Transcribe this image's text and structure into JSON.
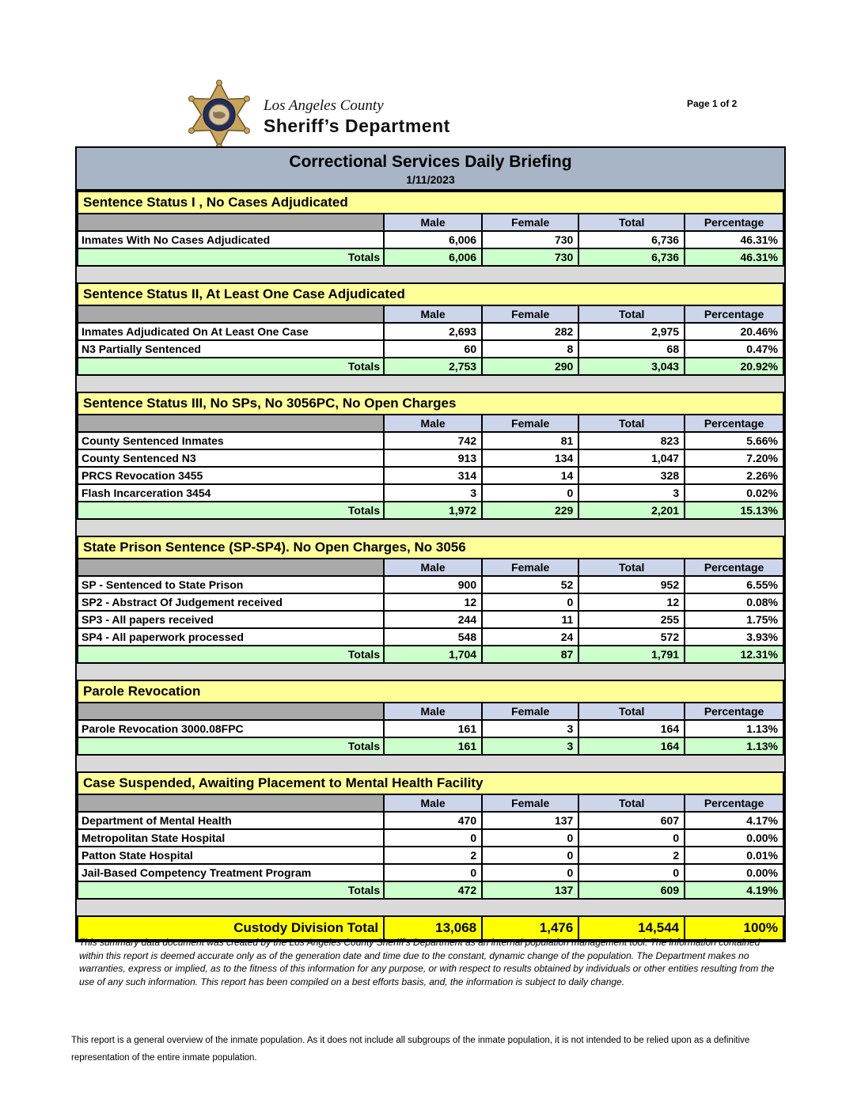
{
  "header": {
    "logo_line1": "Los Angeles County",
    "logo_line2": "Sheriff’s Department",
    "page_indicator": "Page 1 of 2"
  },
  "title_bar": {
    "title": "Correctional Services Daily Briefing",
    "date": "1/11/2023"
  },
  "columns": [
    "Male",
    "Female",
    "Total",
    "Percentage"
  ],
  "totals_label": "Totals",
  "sections": [
    {
      "title": "Sentence Status I , No Cases Adjudicated",
      "rows": [
        {
          "label": "Inmates With No Cases Adjudicated",
          "male": "6,006",
          "female": "730",
          "total": "6,736",
          "pct": "46.31%"
        }
      ],
      "totals": {
        "male": "6,006",
        "female": "730",
        "total": "6,736",
        "pct": "46.31%"
      }
    },
    {
      "title": "Sentence Status II, At Least One Case Adjudicated",
      "rows": [
        {
          "label": "Inmates Adjudicated On At Least One Case",
          "male": "2,693",
          "female": "282",
          "total": "2,975",
          "pct": "20.46%"
        },
        {
          "label": "N3 Partially Sentenced",
          "male": "60",
          "female": "8",
          "total": "68",
          "pct": "0.47%"
        }
      ],
      "totals": {
        "male": "2,753",
        "female": "290",
        "total": "3,043",
        "pct": "20.92%"
      }
    },
    {
      "title": "Sentence Status III, No SPs, No 3056PC, No Open Charges",
      "rows": [
        {
          "label": "County Sentenced Inmates",
          "male": "742",
          "female": "81",
          "total": "823",
          "pct": "5.66%"
        },
        {
          "label": "County Sentenced N3",
          "male": "913",
          "female": "134",
          "total": "1,047",
          "pct": "7.20%"
        },
        {
          "label": "PRCS Revocation 3455",
          "male": "314",
          "female": "14",
          "total": "328",
          "pct": "2.26%"
        },
        {
          "label": "Flash Incarceration 3454",
          "male": "3",
          "female": "0",
          "total": "3",
          "pct": "0.02%"
        }
      ],
      "totals": {
        "male": "1,972",
        "female": "229",
        "total": "2,201",
        "pct": "15.13%"
      }
    },
    {
      "title": "State Prison Sentence (SP-SP4). No Open Charges, No 3056",
      "rows": [
        {
          "label": "SP - Sentenced to State Prison",
          "male": "900",
          "female": "52",
          "total": "952",
          "pct": "6.55%"
        },
        {
          "label": "SP2 - Abstract Of Judgement received",
          "male": "12",
          "female": "0",
          "total": "12",
          "pct": "0.08%"
        },
        {
          "label": "SP3 - All papers received",
          "male": "244",
          "female": "11",
          "total": "255",
          "pct": "1.75%"
        },
        {
          "label": "SP4 - All paperwork processed",
          "male": "548",
          "female": "24",
          "total": "572",
          "pct": "3.93%"
        }
      ],
      "totals": {
        "male": "1,704",
        "female": "87",
        "total": "1,791",
        "pct": "12.31%"
      }
    },
    {
      "title": "Parole Revocation",
      "rows": [
        {
          "label": "Parole Revocation 3000.08FPC",
          "male": "161",
          "female": "3",
          "total": "164",
          "pct": "1.13%"
        }
      ],
      "totals": {
        "male": "161",
        "female": "3",
        "total": "164",
        "pct": "1.13%"
      }
    },
    {
      "title": "Case Suspended, Awaiting Placement to Mental Health Facility",
      "rows": [
        {
          "label": "Department of Mental Health",
          "male": "470",
          "female": "137",
          "total": "607",
          "pct": "4.17%"
        },
        {
          "label": "Metropolitan State Hospital",
          "male": "0",
          "female": "0",
          "total": "0",
          "pct": "0.00%"
        },
        {
          "label": "Patton State Hospital",
          "male": "2",
          "female": "0",
          "total": "2",
          "pct": "0.01%"
        },
        {
          "label": "Jail-Based Competency Treatment Program",
          "male": "0",
          "female": "0",
          "total": "0",
          "pct": "0.00%"
        }
      ],
      "totals": {
        "male": "472",
        "female": "137",
        "total": "609",
        "pct": "4.19%"
      }
    }
  ],
  "grand_total": {
    "label": "Custody Division Total",
    "male": "13,068",
    "female": "1,476",
    "total": "14,544",
    "pct": "100%"
  },
  "disclaimer": "This summary data document was created by the Los Angeles County Sheriff's Department as an internal population management tool.  The information contained within this report is deemed accurate only as of the generation date and time due to the constant, dynamic change of the population.  The Department makes no warranties, express or implied, as to the fitness of this information for any purpose, or with respect to results obtained by individuals or other entities resulting from the use of any such information.  This report has been compiled on a best efforts basis, and, the information is subject to daily change.",
  "footnote": "This report is a general overview of the inmate population.  As it does not include all subgroups of the inmate population, it is not intended to be relied upon as a definitive representation of the entire inmate population.",
  "colors": {
    "title_bar": "#a8b5c7",
    "section_header": "#ffff99",
    "column_header": "#ccd5ea",
    "empty_header_cell": "#a9a9a9",
    "totals_row": "#ccffcc",
    "grand_total_row": "#ffff00",
    "section_gap": "#d9d9d9"
  }
}
